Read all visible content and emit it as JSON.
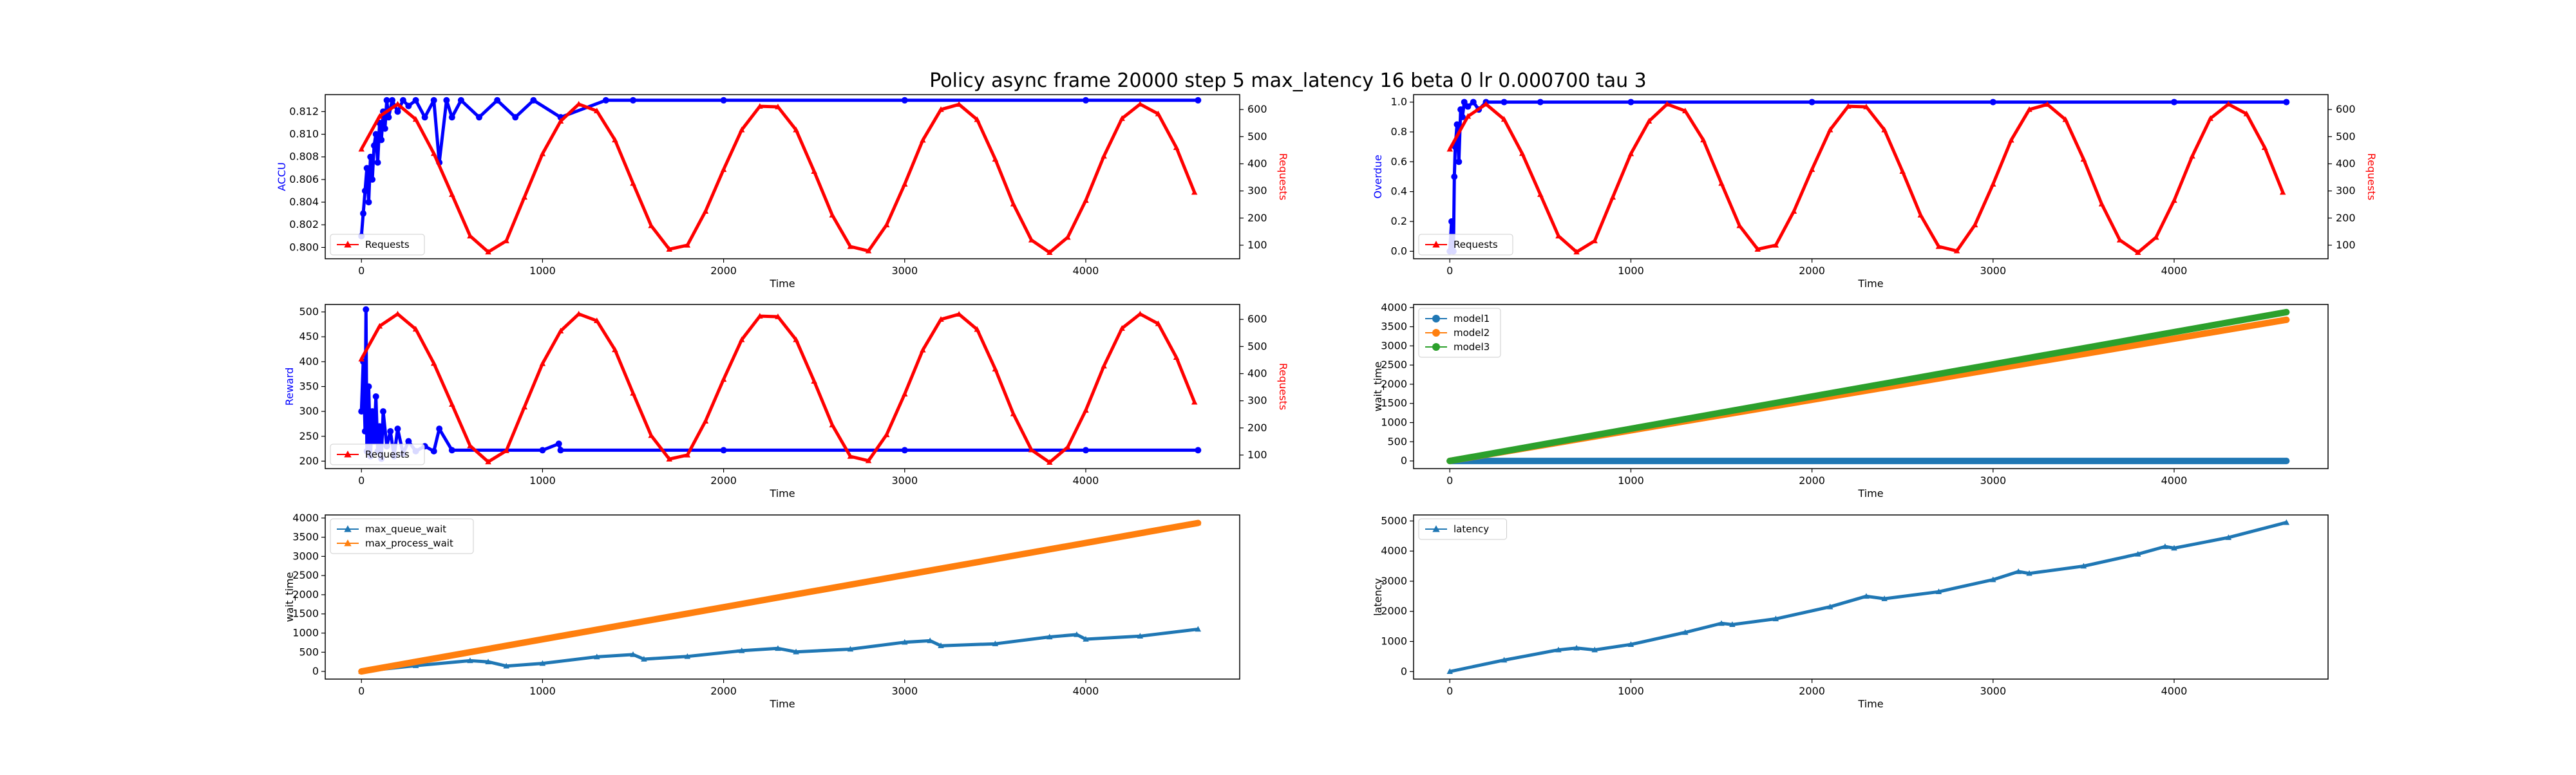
{
  "title": "Policy async frame 20000 step 5 max_latency 16 beta 0 lr 0.000700 tau 3",
  "colors": {
    "blue": "#0000ff",
    "red": "#ff0000",
    "c1": "#1f77b4",
    "c2": "#ff7f0e",
    "c3": "#2ca02c"
  },
  "chart_data": [
    {
      "id": "accu",
      "type": "line",
      "xlabel": "Time",
      "ylabel": "ACCU",
      "ylabel_color": "#0000ff",
      "ylabel_right": "Requests",
      "ylabel_right_color": "#ff0000",
      "xlim": [
        -200,
        4850
      ],
      "ylim": [
        0.799,
        0.8135
      ],
      "ylim_right": [
        50,
        655
      ],
      "xticks": [
        0,
        1000,
        2000,
        3000,
        4000
      ],
      "yticks": [
        0.8,
        0.802,
        0.804,
        0.806,
        0.808,
        0.81,
        0.812
      ],
      "yticks_right": [
        100,
        200,
        300,
        400,
        500,
        600
      ],
      "ytick_decimals": 3,
      "legend": {
        "position": "lower-left",
        "entries": [
          {
            "label": "Requests",
            "color": "#ff0000",
            "marker": "^"
          }
        ]
      },
      "series": [
        {
          "color": "#0000ff",
          "marker": "o",
          "axis": "left",
          "x": [
            0,
            10,
            20,
            30,
            40,
            50,
            60,
            70,
            80,
            90,
            100,
            110,
            120,
            130,
            140,
            150,
            170,
            200,
            230,
            260,
            300,
            350,
            400,
            430,
            470,
            500,
            550,
            650,
            750,
            850,
            950,
            1100,
            1350,
            1500,
            2000,
            3000,
            4000,
            4620
          ],
          "y": [
            0.801,
            0.803,
            0.805,
            0.807,
            0.804,
            0.808,
            0.806,
            0.809,
            0.81,
            0.8075,
            0.811,
            0.8095,
            0.812,
            0.8105,
            0.813,
            0.8115,
            0.813,
            0.812,
            0.813,
            0.8125,
            0.813,
            0.8115,
            0.813,
            0.8075,
            0.813,
            0.8115,
            0.813,
            0.8115,
            0.813,
            0.8115,
            0.813,
            0.8115,
            0.813,
            0.813,
            0.813,
            0.813,
            0.813,
            0.813
          ]
        },
        {
          "name": "Requests",
          "color": "#ff0000",
          "marker": "^",
          "axis": "right",
          "x": [
            0,
            100,
            200,
            300,
            400,
            500,
            600,
            700,
            800,
            900,
            1000,
            1100,
            1200,
            1300,
            1400,
            1500,
            1600,
            1700,
            1800,
            1900,
            2000,
            2100,
            2200,
            2300,
            2400,
            2500,
            2600,
            2700,
            2800,
            2900,
            3000,
            3100,
            3200,
            3300,
            3400,
            3500,
            3600,
            3700,
            3800,
            3900,
            4000,
            4100,
            4200,
            4300,
            4400,
            4500,
            4600
          ],
          "y": [
            454,
            575,
            620,
            564,
            438,
            287,
            134,
            75,
            116,
            277,
            437,
            557,
            620,
            595,
            488,
            328,
            172,
            85,
            100,
            225,
            379,
            525,
            612,
            610,
            525,
            372,
            211,
            95,
            79,
            175,
            325,
            487,
            600,
            619,
            563,
            417,
            252,
            119,
            73,
            129,
            265,
            428,
            567,
            620,
            584,
            460,
            295
          ]
        }
      ]
    },
    {
      "id": "overdue",
      "type": "line",
      "xlabel": "Time",
      "ylabel": "Overdue",
      "ylabel_color": "#0000ff",
      "ylabel_right": "Requests",
      "ylabel_right_color": "#ff0000",
      "xlim": [
        -200,
        4850
      ],
      "ylim": [
        -0.05,
        1.05
      ],
      "ylim_right": [
        50,
        655
      ],
      "xticks": [
        0,
        1000,
        2000,
        3000,
        4000
      ],
      "yticks": [
        0.0,
        0.2,
        0.4,
        0.6,
        0.8,
        1.0
      ],
      "yticks_right": [
        100,
        200,
        300,
        400,
        500,
        600
      ],
      "ytick_decimals": 1,
      "legend": {
        "position": "lower-left",
        "entries": [
          {
            "label": "Requests",
            "color": "#ff0000",
            "marker": "^"
          }
        ]
      },
      "series": [
        {
          "color": "#0000ff",
          "marker": "o",
          "axis": "left",
          "x": [
            0,
            10,
            20,
            25,
            30,
            40,
            50,
            60,
            70,
            80,
            100,
            130,
            160,
            200,
            300,
            500,
            1000,
            2000,
            3000,
            4000,
            4620
          ],
          "y": [
            0.0,
            0.2,
            0.0,
            0.5,
            0.7,
            0.85,
            0.6,
            0.95,
            0.9,
            1.0,
            0.97,
            1.0,
            0.95,
            1.0,
            1.0,
            1.0,
            1.0,
            1.0,
            1.0,
            1.0,
            1.0
          ]
        },
        {
          "name": "Requests",
          "color": "#ff0000",
          "marker": "^",
          "axis": "right",
          "x": [
            0,
            100,
            200,
            300,
            400,
            500,
            600,
            700,
            800,
            900,
            1000,
            1100,
            1200,
            1300,
            1400,
            1500,
            1600,
            1700,
            1800,
            1900,
            2000,
            2100,
            2200,
            2300,
            2400,
            2500,
            2600,
            2700,
            2800,
            2900,
            3000,
            3100,
            3200,
            3300,
            3400,
            3500,
            3600,
            3700,
            3800,
            3900,
            4000,
            4100,
            4200,
            4300,
            4400,
            4500,
            4600
          ],
          "y": [
            454,
            575,
            620,
            564,
            438,
            287,
            134,
            75,
            116,
            277,
            437,
            557,
            620,
            595,
            488,
            328,
            172,
            85,
            100,
            225,
            379,
            525,
            612,
            610,
            525,
            372,
            211,
            95,
            79,
            175,
            325,
            487,
            600,
            619,
            563,
            417,
            252,
            119,
            73,
            129,
            265,
            428,
            567,
            620,
            584,
            460,
            295
          ]
        }
      ]
    },
    {
      "id": "reward",
      "type": "line",
      "xlabel": "Time",
      "ylabel": "Reward",
      "ylabel_color": "#0000ff",
      "ylabel_right": "Requests",
      "ylabel_right_color": "#ff0000",
      "xlim": [
        -200,
        4850
      ],
      "ylim": [
        185,
        515
      ],
      "ylim_right": [
        50,
        655
      ],
      "xticks": [
        0,
        1000,
        2000,
        3000,
        4000
      ],
      "yticks": [
        200,
        250,
        300,
        350,
        400,
        450,
        500
      ],
      "yticks_right": [
        100,
        200,
        300,
        400,
        500,
        600
      ],
      "ytick_decimals": 0,
      "legend": {
        "position": "lower-left",
        "entries": [
          {
            "label": "Requests",
            "color": "#ff0000",
            "marker": "^"
          }
        ]
      },
      "series": [
        {
          "color": "#0000ff",
          "marker": "o",
          "axis": "left",
          "x": [
            0,
            10,
            20,
            25,
            30,
            40,
            50,
            60,
            70,
            80,
            90,
            100,
            110,
            120,
            140,
            160,
            180,
            200,
            230,
            260,
            300,
            350,
            400,
            430,
            500,
            1000,
            1090,
            1100,
            2000,
            3000,
            4000,
            4620
          ],
          "y": [
            300,
            400,
            260,
            505,
            220,
            350,
            210,
            300,
            240,
            330,
            220,
            270,
            205,
            300,
            230,
            260,
            210,
            265,
            215,
            240,
            220,
            230,
            220,
            265,
            222,
            222,
            235,
            222,
            222,
            222,
            222,
            222
          ]
        },
        {
          "name": "Requests",
          "color": "#ff0000",
          "marker": "^",
          "axis": "right",
          "x": [
            0,
            100,
            200,
            300,
            400,
            500,
            600,
            700,
            800,
            900,
            1000,
            1100,
            1200,
            1300,
            1400,
            1500,
            1600,
            1700,
            1800,
            1900,
            2000,
            2100,
            2200,
            2300,
            2400,
            2500,
            2600,
            2700,
            2800,
            2900,
            3000,
            3100,
            3200,
            3300,
            3400,
            3500,
            3600,
            3700,
            3800,
            3900,
            4000,
            4100,
            4200,
            4300,
            4400,
            4500,
            4600
          ],
          "y": [
            454,
            575,
            620,
            564,
            438,
            287,
            134,
            75,
            116,
            277,
            437,
            557,
            620,
            595,
            488,
            328,
            172,
            85,
            100,
            225,
            379,
            525,
            612,
            610,
            525,
            372,
            211,
            95,
            79,
            175,
            325,
            487,
            600,
            619,
            563,
            417,
            252,
            119,
            73,
            129,
            265,
            428,
            567,
            620,
            584,
            460,
            295
          ]
        }
      ]
    },
    {
      "id": "wait_time_models",
      "type": "line",
      "xlabel": "Time",
      "ylabel": "wait_time",
      "ylabel_color": "#000000",
      "xlim": [
        -200,
        4850
      ],
      "ylim": [
        -200,
        4080
      ],
      "xticks": [
        0,
        1000,
        2000,
        3000,
        4000
      ],
      "yticks": [
        0,
        500,
        1000,
        1500,
        2000,
        2500,
        3000,
        3500,
        4000
      ],
      "ytick_decimals": 0,
      "legend": {
        "position": "upper-left",
        "entries": [
          {
            "label": "model1",
            "color": "#1f77b4",
            "marker": "o"
          },
          {
            "label": "model2",
            "color": "#ff7f0e",
            "marker": "o"
          },
          {
            "label": "model3",
            "color": "#2ca02c",
            "marker": "o"
          }
        ]
      },
      "series": [
        {
          "name": "model1",
          "color": "#1f77b4",
          "marker": "o",
          "x": [
            0,
            4620
          ],
          "y": [
            0,
            0
          ]
        },
        {
          "name": "model2",
          "color": "#ff7f0e",
          "marker": "o",
          "x": [
            0,
            4620
          ],
          "y": [
            0,
            3680
          ]
        },
        {
          "name": "model3",
          "color": "#2ca02c",
          "marker": "o",
          "x": [
            0,
            4620
          ],
          "y": [
            0,
            3880
          ]
        }
      ]
    },
    {
      "id": "wait_time_queue",
      "type": "line",
      "xlabel": "Time",
      "ylabel": "wait_time",
      "ylabel_color": "#000000",
      "xlim": [
        -200,
        4850
      ],
      "ylim": [
        -200,
        4080
      ],
      "xticks": [
        0,
        1000,
        2000,
        3000,
        4000
      ],
      "yticks": [
        0,
        500,
        1000,
        1500,
        2000,
        2500,
        3000,
        3500,
        4000
      ],
      "ytick_decimals": 0,
      "legend": {
        "position": "upper-left",
        "entries": [
          {
            "label": "max_queue_wait",
            "color": "#1f77b4",
            "marker": "^"
          },
          {
            "label": "max_process_wait",
            "color": "#ff7f0e",
            "marker": "^"
          }
        ]
      },
      "series": [
        {
          "name": "max_queue_wait",
          "color": "#1f77b4",
          "marker": "^",
          "x": [
            0,
            300,
            600,
            700,
            800,
            1000,
            1300,
            1500,
            1560,
            1800,
            2100,
            2300,
            2400,
            2700,
            3000,
            3140,
            3200,
            3500,
            3800,
            3950,
            4000,
            4300,
            4620
          ],
          "y": [
            0,
            150,
            280,
            250,
            140,
            210,
            380,
            440,
            320,
            390,
            540,
            600,
            510,
            580,
            760,
            800,
            670,
            720,
            900,
            960,
            840,
            920,
            1100
          ]
        },
        {
          "name": "max_process_wait",
          "color": "#ff7f0e",
          "marker": "^",
          "x": [
            0,
            4620
          ],
          "y": [
            0,
            3870
          ]
        }
      ]
    },
    {
      "id": "latency",
      "type": "line",
      "xlabel": "Time",
      "ylabel": "latency",
      "ylabel_color": "#000000",
      "xlim": [
        -200,
        4850
      ],
      "ylim": [
        -250,
        5200
      ],
      "xticks": [
        0,
        1000,
        2000,
        3000,
        4000
      ],
      "yticks": [
        0,
        1000,
        2000,
        3000,
        4000,
        5000
      ],
      "ytick_decimals": 0,
      "legend": {
        "position": "upper-left",
        "entries": [
          {
            "label": "latency",
            "color": "#1f77b4",
            "marker": "^"
          }
        ]
      },
      "series": [
        {
          "name": "latency",
          "color": "#1f77b4",
          "marker": "^",
          "x": [
            0,
            300,
            600,
            700,
            800,
            1000,
            1300,
            1500,
            1560,
            1800,
            2100,
            2300,
            2400,
            2700,
            3000,
            3140,
            3200,
            3500,
            3800,
            3950,
            4000,
            4300,
            4620
          ],
          "y": [
            0,
            380,
            720,
            780,
            720,
            900,
            1300,
            1600,
            1560,
            1750,
            2150,
            2500,
            2420,
            2650,
            3050,
            3320,
            3260,
            3500,
            3900,
            4150,
            4100,
            4450,
            4950
          ]
        }
      ]
    }
  ]
}
